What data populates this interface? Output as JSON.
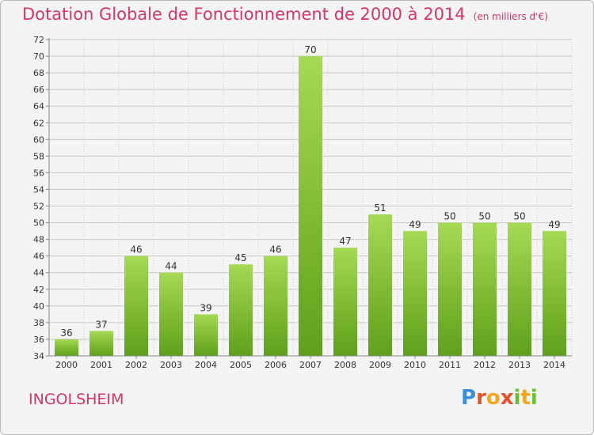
{
  "title": "Dotation Globale de Fonctionnement de 2000 à 2014",
  "unit_note": "(en milliers d'€)",
  "commune": "INGOLSHEIM",
  "brand": {
    "letters": [
      "P",
      "r",
      "o",
      "x",
      "i",
      "t",
      "i"
    ]
  },
  "colors": {
    "title": "#d2366a",
    "bar_top": "#a6d954",
    "bar_bottom": "#5fa01a",
    "grid": "#c8c8c8",
    "axis_text": "#333333"
  },
  "chart_data": {
    "type": "bar",
    "categories": [
      "2000",
      "2001",
      "2002",
      "2003",
      "2004",
      "2005",
      "2006",
      "2007",
      "2008",
      "2009",
      "2010",
      "2011",
      "2012",
      "2013",
      "2014"
    ],
    "values": [
      36,
      37,
      46,
      44,
      39,
      45,
      46,
      70,
      47,
      51,
      49,
      50,
      50,
      50,
      49
    ],
    "ylim": [
      34,
      72
    ],
    "ytick_step": 2,
    "grid": true,
    "data_labels": true,
    "title": "Dotation Globale de Fonctionnement de 2000 à 2014",
    "xlabel": "",
    "ylabel": ""
  }
}
